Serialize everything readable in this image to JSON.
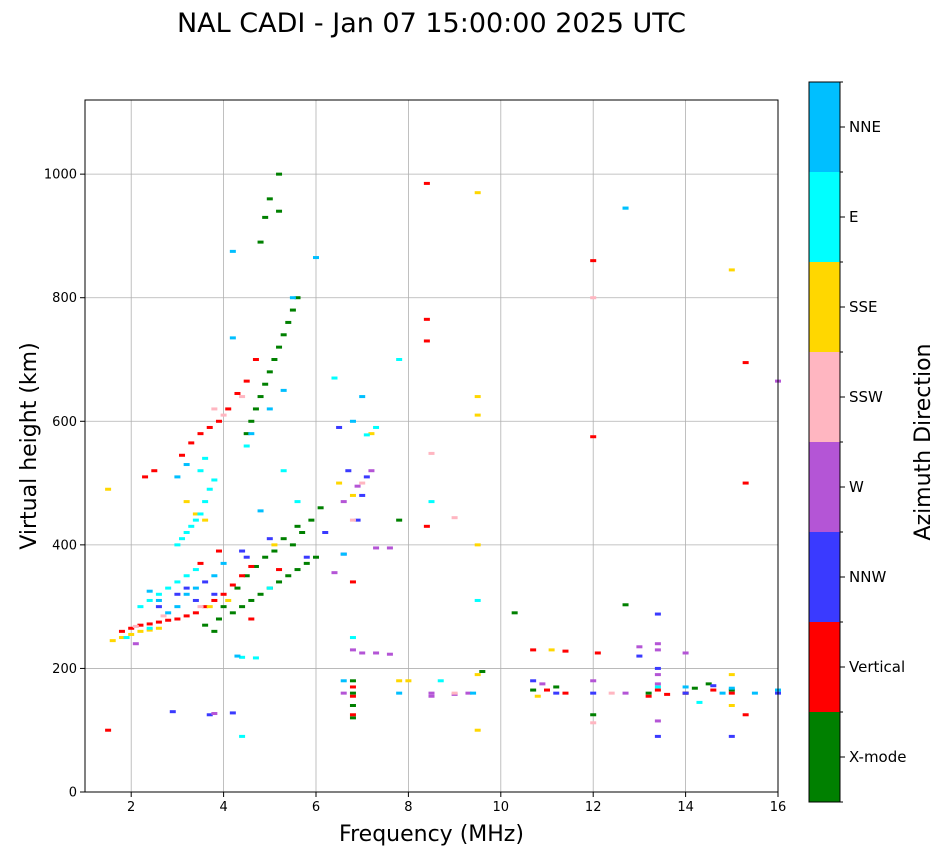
{
  "chart_data": {
    "type": "scatter",
    "title": "NAL CADI - Jan 07 15:00:00 2025 UTC",
    "xlabel": "Frequency (MHz)",
    "ylabel": "Virtual height (km)",
    "xlim": [
      1,
      16
    ],
    "ylim": [
      0,
      1120
    ],
    "xticks": [
      2,
      4,
      6,
      8,
      10,
      12,
      14,
      16
    ],
    "yticks": [
      0,
      200,
      400,
      600,
      800,
      1000
    ],
    "grid": true,
    "colorbar": {
      "label": "Azimuth Direction",
      "categories": [
        "X-mode",
        "Vertical",
        "NNW",
        "W",
        "SSW",
        "SSE",
        "E",
        "NNE"
      ],
      "colors": [
        "#008000",
        "#ff0000",
        "#3a3aff",
        "#b455d6",
        "#ffb6c1",
        "#ffd700",
        "#00ffff",
        "#00bfff"
      ]
    },
    "series": [
      {
        "name": "X-mode",
        "points": [
          [
            4.5,
            580
          ],
          [
            4.6,
            600
          ],
          [
            4.7,
            620
          ],
          [
            4.8,
            640
          ],
          [
            4.9,
            660
          ],
          [
            5.0,
            680
          ],
          [
            5.1,
            700
          ],
          [
            5.2,
            720
          ],
          [
            5.3,
            740
          ],
          [
            5.4,
            760
          ],
          [
            5.5,
            780
          ],
          [
            5.6,
            800
          ],
          [
            5.0,
            960
          ],
          [
            5.2,
            1000
          ],
          [
            4.9,
            930
          ],
          [
            4.8,
            890
          ],
          [
            5.2,
            940
          ],
          [
            4.2,
            290
          ],
          [
            4.4,
            300
          ],
          [
            4.6,
            310
          ],
          [
            4.8,
            320
          ],
          [
            5.0,
            330
          ],
          [
            5.2,
            340
          ],
          [
            5.4,
            350
          ],
          [
            5.6,
            360
          ],
          [
            5.8,
            370
          ],
          [
            6.0,
            380
          ],
          [
            5.5,
            400
          ],
          [
            5.7,
            420
          ],
          [
            5.9,
            440
          ],
          [
            6.1,
            460
          ],
          [
            4.5,
            350
          ],
          [
            4.7,
            365
          ],
          [
            4.9,
            380
          ],
          [
            3.9,
            280
          ],
          [
            4.0,
            300
          ],
          [
            6.8,
            180
          ],
          [
            6.8,
            160
          ],
          [
            6.8,
            140
          ],
          [
            6.8,
            120
          ],
          [
            10.7,
            165
          ],
          [
            11.2,
            170
          ],
          [
            12.7,
            303
          ],
          [
            14.2,
            168
          ],
          [
            14.5,
            175
          ],
          [
            3.6,
            270
          ],
          [
            3.8,
            260
          ],
          [
            5.3,
            410
          ],
          [
            5.6,
            430
          ],
          [
            5.1,
            390
          ],
          [
            4.3,
            330
          ],
          [
            7.8,
            440
          ],
          [
            9.6,
            195
          ],
          [
            12.0,
            125
          ],
          [
            14.0,
            160
          ],
          [
            10.3,
            290
          ],
          [
            13.2,
            160
          ],
          [
            15.0,
            165
          ]
        ]
      },
      {
        "name": "Vertical",
        "points": [
          [
            1.8,
            260
          ],
          [
            2.0,
            265
          ],
          [
            2.2,
            270
          ],
          [
            2.4,
            272
          ],
          [
            2.6,
            275
          ],
          [
            2.8,
            278
          ],
          [
            3.0,
            280
          ],
          [
            3.2,
            285
          ],
          [
            3.4,
            290
          ],
          [
            3.6,
            300
          ],
          [
            3.8,
            310
          ],
          [
            4.0,
            320
          ],
          [
            4.2,
            335
          ],
          [
            4.4,
            350
          ],
          [
            4.6,
            365
          ],
          [
            2.3,
            510
          ],
          [
            2.5,
            520
          ],
          [
            3.1,
            545
          ],
          [
            3.3,
            565
          ],
          [
            3.5,
            580
          ],
          [
            3.7,
            590
          ],
          [
            3.9,
            600
          ],
          [
            4.1,
            620
          ],
          [
            4.3,
            645
          ],
          [
            4.5,
            665
          ],
          [
            4.7,
            700
          ],
          [
            6.8,
            340
          ],
          [
            6.8,
            170
          ],
          [
            6.8,
            155
          ],
          [
            6.8,
            125
          ],
          [
            8.4,
            985
          ],
          [
            8.4,
            765
          ],
          [
            8.4,
            730
          ],
          [
            8.4,
            430
          ],
          [
            11.4,
            228
          ],
          [
            12.0,
            860
          ],
          [
            12.0,
            575
          ],
          [
            13.2,
            155
          ],
          [
            13.4,
            165
          ],
          [
            13.6,
            158
          ],
          [
            14.0,
            160
          ],
          [
            14.6,
            165
          ],
          [
            15.0,
            160
          ],
          [
            15.3,
            695
          ],
          [
            15.3,
            500
          ],
          [
            15.3,
            125
          ],
          [
            11.0,
            165
          ],
          [
            12.1,
            225
          ],
          [
            3.5,
            370
          ],
          [
            3.9,
            390
          ],
          [
            4.6,
            280
          ],
          [
            5.2,
            360
          ],
          [
            10.7,
            230
          ],
          [
            11.4,
            160
          ],
          [
            1.5,
            100
          ]
        ]
      },
      {
        "name": "NNW",
        "points": [
          [
            3.0,
            320
          ],
          [
            3.2,
            330
          ],
          [
            3.4,
            310
          ],
          [
            3.6,
            340
          ],
          [
            3.8,
            320
          ],
          [
            2.9,
            130
          ],
          [
            3.7,
            125
          ],
          [
            4.2,
            128
          ],
          [
            5.8,
            380
          ],
          [
            6.2,
            420
          ],
          [
            6.6,
            385
          ],
          [
            6.9,
            440
          ],
          [
            7.1,
            510
          ],
          [
            13.4,
            288
          ],
          [
            13.4,
            200
          ],
          [
            13.4,
            90
          ],
          [
            15.0,
            90
          ],
          [
            14.0,
            160
          ],
          [
            14.6,
            172
          ],
          [
            16.0,
            160
          ],
          [
            13.0,
            220
          ],
          [
            6.5,
            590
          ],
          [
            6.7,
            520
          ],
          [
            7.0,
            480
          ],
          [
            4.5,
            380
          ],
          [
            5.0,
            410
          ],
          [
            12.0,
            160
          ],
          [
            10.7,
            180
          ],
          [
            11.2,
            160
          ],
          [
            2.6,
            300
          ],
          [
            4.4,
            390
          ]
        ]
      },
      {
        "name": "W",
        "points": [
          [
            6.8,
            230
          ],
          [
            7.0,
            225
          ],
          [
            7.3,
            225
          ],
          [
            7.6,
            223
          ],
          [
            6.6,
            160
          ],
          [
            8.5,
            160
          ],
          [
            9.0,
            158
          ],
          [
            9.3,
            160
          ],
          [
            7.3,
            395
          ],
          [
            7.6,
            395
          ],
          [
            13.4,
            240
          ],
          [
            13.4,
            230
          ],
          [
            13.4,
            190
          ],
          [
            13.4,
            175
          ],
          [
            13.4,
            115
          ],
          [
            14.0,
            225
          ],
          [
            16.0,
            665
          ],
          [
            13.0,
            235
          ],
          [
            12.7,
            160
          ],
          [
            6.6,
            470
          ],
          [
            6.9,
            495
          ],
          [
            7.2,
            520
          ],
          [
            8.5,
            155
          ],
          [
            10.9,
            175
          ],
          [
            12.0,
            180
          ],
          [
            3.8,
            127
          ],
          [
            2.1,
            240
          ],
          [
            6.4,
            355
          ]
        ]
      },
      {
        "name": "SSW",
        "points": [
          [
            3.8,
            620
          ],
          [
            4.0,
            610
          ],
          [
            4.4,
            640
          ],
          [
            8.5,
            548
          ],
          [
            9.0,
            444
          ],
          [
            12.0,
            800
          ],
          [
            12.0,
            112
          ],
          [
            6.8,
            440
          ],
          [
            7.0,
            500
          ],
          [
            9.0,
            160
          ],
          [
            12.4,
            160
          ],
          [
            2.1,
            268
          ],
          [
            2.7,
            285
          ],
          [
            3.5,
            300
          ]
        ]
      },
      {
        "name": "SSE",
        "points": [
          [
            1.6,
            245
          ],
          [
            1.8,
            250
          ],
          [
            2.0,
            255
          ],
          [
            2.2,
            260
          ],
          [
            2.4,
            262
          ],
          [
            2.6,
            265
          ],
          [
            3.2,
            470
          ],
          [
            3.4,
            450
          ],
          [
            3.6,
            440
          ],
          [
            9.5,
            970
          ],
          [
            9.5,
            640
          ],
          [
            9.5,
            610
          ],
          [
            9.5,
            400
          ],
          [
            9.5,
            190
          ],
          [
            9.5,
            100
          ],
          [
            15.0,
            845
          ],
          [
            15.0,
            190
          ],
          [
            15.0,
            140
          ],
          [
            10.8,
            155
          ],
          [
            11.1,
            230
          ],
          [
            6.5,
            500
          ],
          [
            6.8,
            480
          ],
          [
            7.2,
            580
          ],
          [
            7.8,
            180
          ],
          [
            8.0,
            180
          ],
          [
            1.5,
            490
          ],
          [
            3.7,
            300
          ],
          [
            4.1,
            310
          ],
          [
            5.1,
            400
          ]
        ]
      },
      {
        "name": "E",
        "points": [
          [
            3.0,
            400
          ],
          [
            3.1,
            410
          ],
          [
            3.2,
            420
          ],
          [
            3.3,
            430
          ],
          [
            3.4,
            440
          ],
          [
            3.5,
            450
          ],
          [
            3.6,
            470
          ],
          [
            3.7,
            490
          ],
          [
            3.8,
            505
          ],
          [
            3.5,
            520
          ],
          [
            3.6,
            540
          ],
          [
            2.2,
            300
          ],
          [
            2.4,
            310
          ],
          [
            2.6,
            320
          ],
          [
            2.8,
            330
          ],
          [
            3.0,
            340
          ],
          [
            3.2,
            350
          ],
          [
            3.4,
            360
          ],
          [
            8.5,
            470
          ],
          [
            8.7,
            180
          ],
          [
            9.5,
            310
          ],
          [
            12.7,
            945
          ],
          [
            13.4,
            170
          ],
          [
            14.3,
            145
          ],
          [
            6.8,
            250
          ],
          [
            7.1,
            578
          ],
          [
            7.3,
            590
          ],
          [
            2.4,
            265
          ],
          [
            1.9,
            250
          ],
          [
            4.4,
            218
          ],
          [
            4.7,
            217
          ],
          [
            4.4,
            90
          ],
          [
            7.8,
            700
          ],
          [
            6.4,
            670
          ],
          [
            4.5,
            560
          ],
          [
            5.3,
            520
          ],
          [
            5.0,
            330
          ],
          [
            5.6,
            470
          ]
        ]
      },
      {
        "name": "NNE",
        "points": [
          [
            4.2,
            875
          ],
          [
            4.2,
            735
          ],
          [
            5.5,
            800
          ],
          [
            6.0,
            865
          ],
          [
            3.0,
            510
          ],
          [
            3.2,
            530
          ],
          [
            3.0,
            300
          ],
          [
            3.2,
            320
          ],
          [
            2.8,
            290
          ],
          [
            2.6,
            310
          ],
          [
            2.4,
            325
          ],
          [
            4.3,
            220
          ],
          [
            6.6,
            385
          ],
          [
            6.8,
            600
          ],
          [
            7.0,
            640
          ],
          [
            7.8,
            160
          ],
          [
            9.4,
            160
          ],
          [
            12.7,
            945
          ],
          [
            14.0,
            170
          ],
          [
            14.8,
            160
          ],
          [
            15.5,
            160
          ],
          [
            16.0,
            165
          ],
          [
            4.6,
            580
          ],
          [
            5.0,
            620
          ],
          [
            5.3,
            650
          ],
          [
            3.4,
            330
          ],
          [
            3.8,
            350
          ],
          [
            4.0,
            370
          ],
          [
            4.8,
            455
          ],
          [
            6.6,
            180
          ],
          [
            15.0,
            168
          ]
        ]
      }
    ]
  }
}
